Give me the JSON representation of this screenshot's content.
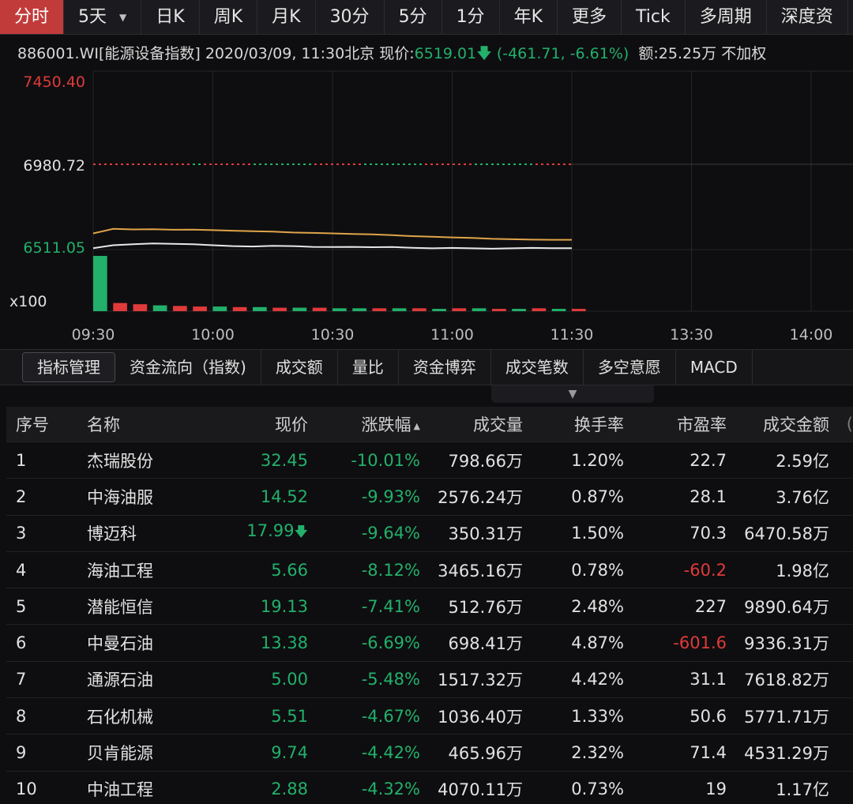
{
  "tabs": [
    "分时",
    "5天",
    "日K",
    "周K",
    "月K",
    "30分",
    "5分",
    "1分",
    "年K",
    "更多",
    "Tick",
    "多周期",
    "深度资"
  ],
  "info": {
    "code": "886001.WI[能源设备指数]",
    "datetime": "2020/03/09, 11:30北京",
    "price_label": "现价:",
    "price": "6519.01",
    "change": "(-461.71, -6.61%)",
    "amount": "额:25.25万",
    "extra": "不加权"
  },
  "chart_data": {
    "type": "line",
    "y_ticks": [
      "7450.40",
      "6980.72",
      "6511.05"
    ],
    "y_tick_values": [
      7450.4,
      6980.72,
      6511.05
    ],
    "ylim": [
      6511.05,
      7450.4
    ],
    "volume_label": "x100",
    "x_ticks": [
      "09:30",
      "10:00",
      "10:30",
      "11:00",
      "11:30",
      "13:30",
      "14:00"
    ],
    "x": [
      "09:30",
      "09:35",
      "09:40",
      "09:45",
      "09:50",
      "09:55",
      "10:00",
      "10:05",
      "10:10",
      "10:15",
      "10:20",
      "10:25",
      "10:30",
      "10:35",
      "10:40",
      "10:45",
      "10:50",
      "10:55",
      "11:00",
      "11:05",
      "11:10",
      "11:15",
      "11:20",
      "11:25",
      "11:30"
    ],
    "series": [
      {
        "values": [
          6600,
          6625,
          6622,
          6623,
          6620,
          6621,
          6618,
          6615,
          6612,
          6610,
          6605,
          6603,
          6600,
          6597,
          6595,
          6590,
          6585,
          6582,
          6578,
          6575,
          6570,
          6568,
          6566,
          6565,
          6565
        ]
      },
      {
        "values": [
          6519,
          6535,
          6540,
          6545,
          6543,
          6540,
          6535,
          6530,
          6528,
          6532,
          6530,
          6526,
          6525,
          6526,
          6524,
          6525,
          6521,
          6518,
          6520,
          6518,
          6516,
          6518,
          6520,
          6519,
          6519
        ]
      }
    ],
    "volume": [
      95,
      14,
      12,
      10,
      9,
      8,
      8,
      7,
      7,
      6,
      6,
      6,
      5,
      5,
      5,
      5,
      5,
      4,
      5,
      5,
      4,
      4,
      5,
      4,
      4
    ],
    "volume_up": [
      false,
      true,
      true,
      false,
      true,
      true,
      false,
      true,
      false,
      true,
      false,
      true,
      false,
      false,
      true,
      false,
      true,
      false,
      true,
      false,
      true,
      false,
      true,
      false,
      true
    ],
    "colors": {
      "prev_close_up": "#e03a3a",
      "prev_close_down": "#22b06b",
      "avg_line": "#e0a44a",
      "price_line": "#e8e8e8",
      "up": "#e03a3a",
      "down": "#22b06b",
      "top_label": "#e03a3a",
      "bottom_label": "#22b06b"
    }
  },
  "indicator_tabs": [
    "指标管理",
    "资金流向（指数)",
    "成交额",
    "量比",
    "资金博弈",
    "成交笔数",
    "多空意愿",
    "MACD"
  ],
  "table": {
    "headers": [
      "序号",
      "名称",
      "现价",
      "涨跌幅",
      "成交量",
      "换手率",
      "市盈率",
      "成交金额",
      "("
    ],
    "rows": [
      [
        "1",
        "杰瑞股份",
        "32.45",
        "-10.01%",
        "798.66万",
        "1.20%",
        "22.7",
        "2.59亿"
      ],
      [
        "2",
        "中海油服",
        "14.52",
        "-9.93%",
        "2576.24万",
        "0.87%",
        "28.1",
        "3.76亿"
      ],
      [
        "3",
        "博迈科",
        "17.99",
        "-9.64%",
        "350.31万",
        "1.50%",
        "70.3",
        "6470.58万"
      ],
      [
        "4",
        "海油工程",
        "5.66",
        "-8.12%",
        "3465.16万",
        "0.78%",
        "-60.2",
        "1.98亿"
      ],
      [
        "5",
        "潜能恒信",
        "19.13",
        "-7.41%",
        "512.76万",
        "2.48%",
        "227",
        "9890.64万"
      ],
      [
        "6",
        "中曼石油",
        "13.38",
        "-6.69%",
        "698.41万",
        "4.87%",
        "-601.6",
        "9336.31万"
      ],
      [
        "7",
        "通源石油",
        "5.00",
        "-5.48%",
        "1517.32万",
        "4.42%",
        "31.1",
        "7618.82万"
      ],
      [
        "8",
        "石化机械",
        "5.51",
        "-4.67%",
        "1036.40万",
        "1.33%",
        "50.6",
        "5771.71万"
      ],
      [
        "9",
        "贝肯能源",
        "9.74",
        "-4.42%",
        "465.96万",
        "2.32%",
        "71.4",
        "4531.29万"
      ],
      [
        "10",
        "中油工程",
        "2.88",
        "-4.32%",
        "4070.11万",
        "0.73%",
        "19",
        "1.17亿"
      ]
    ]
  },
  "icons": {
    "down_arrow": "arrow-down-icon",
    "sort": "sort-asc-icon",
    "caret": "caret-down-icon",
    "expand": "expand-icon"
  }
}
